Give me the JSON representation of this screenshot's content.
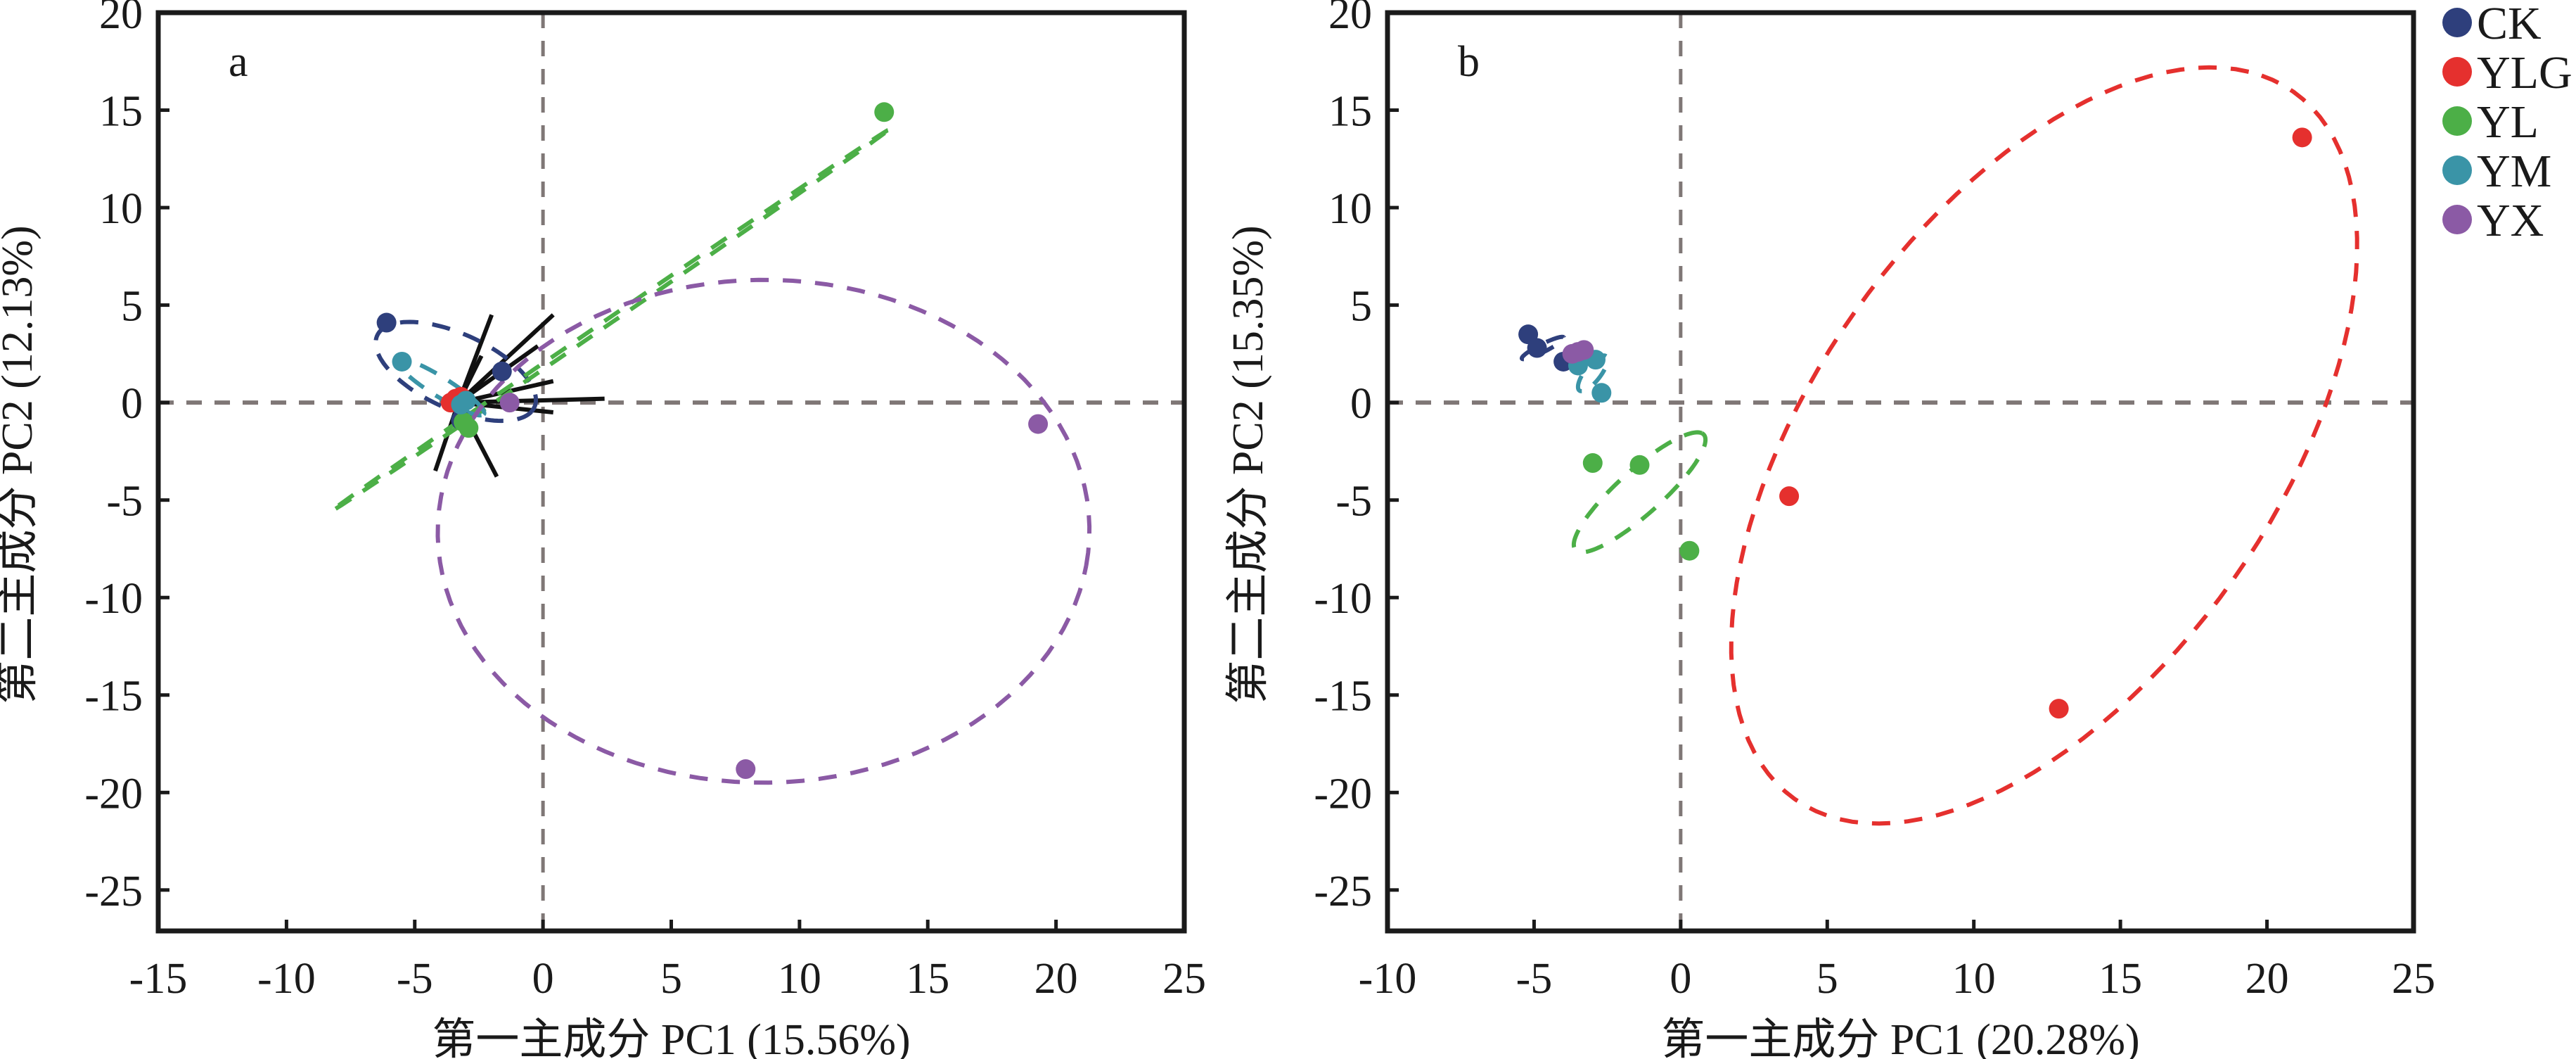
{
  "chart_data": [
    {
      "type": "scatter",
      "panel_label": "a",
      "xlabel": "第一主成分 PC1 (15.56%)",
      "ylabel": "第二主成分 PC2 (12.13%)",
      "xlim": [
        -15,
        25
      ],
      "ylim": [
        -27.1,
        20
      ],
      "xticks": [
        -15,
        -10,
        -5,
        0,
        5,
        10,
        15,
        20,
        25
      ],
      "yticks": [
        -25,
        -20,
        -15,
        -10,
        -5,
        0,
        5,
        10,
        15,
        20
      ],
      "xtick_labels": [
        "-15",
        "-10",
        "-5",
        "0",
        "5",
        "10",
        "15",
        "20",
        "25"
      ],
      "ytick_labels": [
        "-25",
        "-20",
        "-15",
        "-10",
        "-5",
        "0",
        "5",
        "10",
        "15",
        "20"
      ],
      "reference_lines": {
        "x": 0,
        "y": 0
      },
      "series": [
        {
          "name": "CK",
          "points": [
            [
              -6.1,
              4.1
            ],
            [
              -1.6,
              1.6
            ],
            [
              -3.2,
              -0.9
            ]
          ],
          "ellipse": {
            "cx": -3.4,
            "cy": 1.6,
            "rx": 3.6,
            "ry": 1.8,
            "angle": -35
          }
        },
        {
          "name": "YLG",
          "points": [
            [
              -3.4,
              0.2
            ],
            [
              -3.6,
              0.0
            ],
            [
              -3.2,
              0.3
            ]
          ],
          "ellipse": {
            "cx": -3.4,
            "cy": 0.15,
            "rx": 0.45,
            "ry": 0.35,
            "angle": 0
          }
        },
        {
          "name": "YL",
          "points": [
            [
              13.3,
              14.9
            ],
            [
              -2.9,
              -1.3
            ],
            [
              -3.1,
              -1.0
            ]
          ],
          "ellipse": {
            "cx": 2.6,
            "cy": 4.2,
            "rx": 14.6,
            "ry": 0.12,
            "angle": 42
          }
        },
        {
          "name": "YM",
          "points": [
            [
              -5.5,
              2.1
            ],
            [
              -3.2,
              -0.1
            ],
            [
              -3.0,
              0.1
            ]
          ],
          "ellipse": {
            "cx": -4.0,
            "cy": 0.8,
            "rx": 2.2,
            "ry": 0.45,
            "angle": -40
          }
        },
        {
          "name": "YX",
          "points": [
            [
              19.3,
              -1.1
            ],
            [
              7.9,
              -18.8
            ],
            [
              -1.3,
              0.0
            ]
          ],
          "ellipse": {
            "cx": 8.6,
            "cy": -6.6,
            "rx": 12.7,
            "ry": 12.9,
            "angle": -8
          }
        }
      ],
      "loadings": [
        [
          -2.0,
          4.5
        ],
        [
          0.4,
          4.5
        ],
        [
          -0.2,
          2.9
        ],
        [
          -2.4,
          2.4
        ],
        [
          0.4,
          1.1
        ],
        [
          2.4,
          0.2
        ],
        [
          0.4,
          -0.5
        ],
        [
          -1.8,
          -3.8
        ],
        [
          -4.2,
          -3.5
        ]
      ],
      "loadings_origin": [
        -3.3,
        0.0
      ]
    },
    {
      "type": "scatter",
      "panel_label": "b",
      "xlabel": "第一主成分 PC1 (20.28%)",
      "ylabel": "第二主成分 PC2 (15.35%)",
      "xlim": [
        -10,
        25
      ],
      "ylim": [
        -27.1,
        20
      ],
      "xticks": [
        -10,
        -5,
        0,
        5,
        10,
        15,
        20,
        25
      ],
      "yticks": [
        -25,
        -20,
        -15,
        -10,
        -5,
        0,
        5,
        10,
        15,
        20
      ],
      "xtick_labels": [
        "-10",
        "-5",
        "0",
        "5",
        "10",
        "15",
        "20",
        "25"
      ],
      "ytick_labels": [
        "-25",
        "-20",
        "-15",
        "-10",
        "-5",
        "0",
        "5",
        "10",
        "15",
        "20"
      ],
      "reference_lines": {
        "x": 0,
        "y": 0
      },
      "series": [
        {
          "name": "CK",
          "points": [
            [
              -5.2,
              3.5
            ],
            [
              -4.9,
              2.8
            ],
            [
              -4.0,
              2.1
            ]
          ],
          "ellipse": {
            "cx": -4.7,
            "cy": 2.8,
            "rx": 0.9,
            "ry": 0.18,
            "angle": 38
          }
        },
        {
          "name": "YLG",
          "points": [
            [
              21.2,
              13.6
            ],
            [
              3.7,
              -4.8
            ],
            [
              12.9,
              -15.7
            ]
          ],
          "ellipse": {
            "cx": 12.4,
            "cy": -2.2,
            "rx": 20.4,
            "ry": 8.6,
            "angle": 70
          }
        },
        {
          "name": "YL",
          "points": [
            [
              -3.0,
              -3.1
            ],
            [
              -1.4,
              -3.2
            ],
            [
              0.3,
              -7.6
            ]
          ],
          "ellipse": {
            "cx": -1.4,
            "cy": -4.6,
            "rx": 3.7,
            "ry": 0.9,
            "angle": 55
          }
        },
        {
          "name": "YM",
          "points": [
            [
              -3.5,
              1.9
            ],
            [
              -2.9,
              2.2
            ],
            [
              -2.7,
              0.5
            ]
          ],
          "ellipse": {
            "cx": -3.0,
            "cy": 1.5,
            "rx": 1.0,
            "ry": 0.3,
            "angle": 65
          }
        },
        {
          "name": "YX",
          "points": [
            [
              -3.7,
              2.5
            ],
            [
              -3.3,
              2.7
            ],
            [
              -3.5,
              2.6
            ]
          ],
          "ellipse": {
            "cx": -3.5,
            "cy": 2.6,
            "rx": 0.3,
            "ry": 0.2,
            "angle": 0
          }
        }
      ]
    }
  ],
  "legend": {
    "position": "top-right",
    "items": [
      {
        "label": "CK",
        "color": "#2e3f7c"
      },
      {
        "label": "YLG",
        "color": "#e5302e"
      },
      {
        "label": "YL",
        "color": "#4caf47"
      },
      {
        "label": "YM",
        "color": "#3a94a7"
      },
      {
        "label": "YX",
        "color": "#8b5aa5"
      }
    ]
  },
  "colors": {
    "axis": "#1a1a1a",
    "reference_line": "#7f7776",
    "loading_line": "#111111"
  }
}
